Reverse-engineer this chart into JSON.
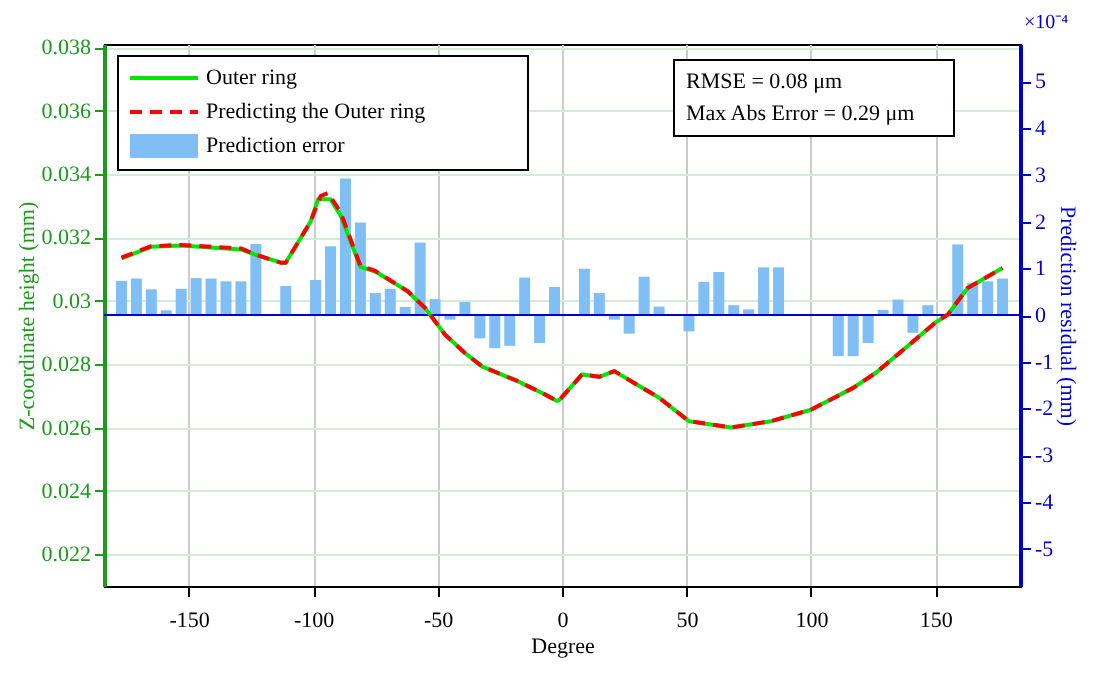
{
  "chart_data": {
    "type": "line",
    "xlabel": "Degree",
    "ylabel": "Z-coordinate height (mm)",
    "y2label": "Prediction residual (mm)",
    "annotations": [
      "RMSE = 0.08 μm",
      "Max Abs Error = 0.29 μm",
      "×10⁻⁴"
    ],
    "xlim": [
      -180,
      180
    ],
    "xticks": [
      -150,
      -100,
      -50,
      0,
      50,
      100,
      150
    ],
    "ylim": [
      0.021,
      0.0381
    ],
    "yticks": [
      0.022,
      0.024,
      0.026,
      0.028,
      0.03,
      0.032,
      0.034,
      0.036,
      0.038
    ],
    "y2lim": [
      -5.8,
      5.8
    ],
    "y2ticks": [
      -5,
      -4,
      -3,
      -2,
      -1,
      0,
      1,
      2,
      3,
      4,
      5
    ],
    "grid": true,
    "legend": "top left",
    "marker": "none",
    "ref_lines": [
      {
        "axis": "y2",
        "value": 0,
        "color": "#0000cc"
      }
    ],
    "series": [
      {
        "name": "Prediction error",
        "type": "bar",
        "axis": "y2",
        "color": "#80bff5",
        "x": [
          -177,
          -171,
          -165,
          -159,
          -153,
          -147,
          -141,
          -135,
          -129,
          -123,
          -117,
          -111,
          -105,
          -99,
          -93,
          -87,
          -81,
          -75,
          -69,
          -63,
          -57,
          -51,
          -45,
          -39,
          -33,
          -27,
          -21,
          -15,
          -9,
          -3,
          3,
          9,
          15,
          21,
          27,
          33,
          39,
          45,
          51,
          57,
          63,
          69,
          75,
          81,
          87,
          93,
          99,
          105,
          111,
          117,
          123,
          129,
          135,
          141,
          147,
          153,
          159,
          165,
          171,
          177
        ],
        "values": [
          0.73,
          0.78,
          0.55,
          0.1,
          0.56,
          0.79,
          0.78,
          0.72,
          0.72,
          1.52,
          0,
          0.62,
          0,
          0.75,
          1.47,
          2.92,
          1.98,
          0.47,
          0.56,
          0.17,
          1.55,
          0.34,
          -0.1,
          0.28,
          -0.5,
          -0.71,
          -0.66,
          0.8,
          -0.6,
          0.6,
          0,
          0.99,
          0.47,
          -0.1,
          -0.4,
          0.82,
          0.18,
          0,
          -0.35,
          0.71,
          0.92,
          0.21,
          0.12,
          1.02,
          1.02,
          0,
          0,
          0,
          -0.88,
          -0.88,
          -0.6,
          0.11,
          0.33,
          -0.38,
          0.21,
          0,
          1.51,
          0.68,
          0.72,
          0.78
        ]
      },
      {
        "name": "Outer ring",
        "type": "line",
        "color": "#00e600",
        "line_style": "solid",
        "x": [
          -177,
          -165,
          -153,
          -129,
          -123,
          -113,
          -111,
          -101,
          -98,
          -93,
          -89,
          -81,
          -75,
          -62,
          -55,
          -47,
          -39,
          -32,
          -18,
          -8,
          -2,
          -1,
          8,
          15,
          21,
          30,
          39,
          51,
          68,
          84,
          100,
          117,
          126,
          138,
          150,
          155,
          163,
          177
        ],
        "values": [
          0.03134,
          0.0317,
          0.03174,
          0.03162,
          0.03145,
          0.0312,
          0.0312,
          0.0325,
          0.0332,
          0.0332,
          0.0327,
          0.03107,
          0.03092,
          0.0303,
          0.02977,
          0.02893,
          0.02835,
          0.02792,
          0.02747,
          0.02709,
          0.02684,
          0.02687,
          0.02767,
          0.0276,
          0.02778,
          0.02736,
          0.02694,
          0.0262,
          0.026,
          0.0262,
          0.02656,
          0.02725,
          0.02772,
          0.02851,
          0.02931,
          0.02956,
          0.0304,
          0.03103
        ]
      },
      {
        "name": "Predicting the Outer ring",
        "type": "line",
        "color": "#ff0000",
        "line_style": "dashed",
        "x": [
          -177,
          -165,
          -153,
          -129,
          -123,
          -113,
          -111,
          -101,
          -97,
          -94,
          -89,
          -81,
          -75,
          -62,
          -55,
          -47,
          -39,
          -32,
          -18,
          -8,
          -2,
          -1,
          8,
          15,
          21,
          30,
          39,
          51,
          68,
          84,
          100,
          117,
          126,
          138,
          150,
          155,
          163,
          177
        ],
        "values": [
          0.03136,
          0.03172,
          0.03176,
          0.03165,
          0.03145,
          0.0312,
          0.0312,
          0.0325,
          0.0333,
          0.0334,
          0.0328,
          0.0311,
          0.03094,
          0.0303,
          0.02977,
          0.02893,
          0.02835,
          0.02792,
          0.02747,
          0.02709,
          0.02684,
          0.02687,
          0.02767,
          0.0276,
          0.02778,
          0.02736,
          0.02694,
          0.0262,
          0.026,
          0.0262,
          0.02656,
          0.02725,
          0.02772,
          0.02851,
          0.02931,
          0.02956,
          0.0304,
          0.03103
        ]
      }
    ]
  }
}
